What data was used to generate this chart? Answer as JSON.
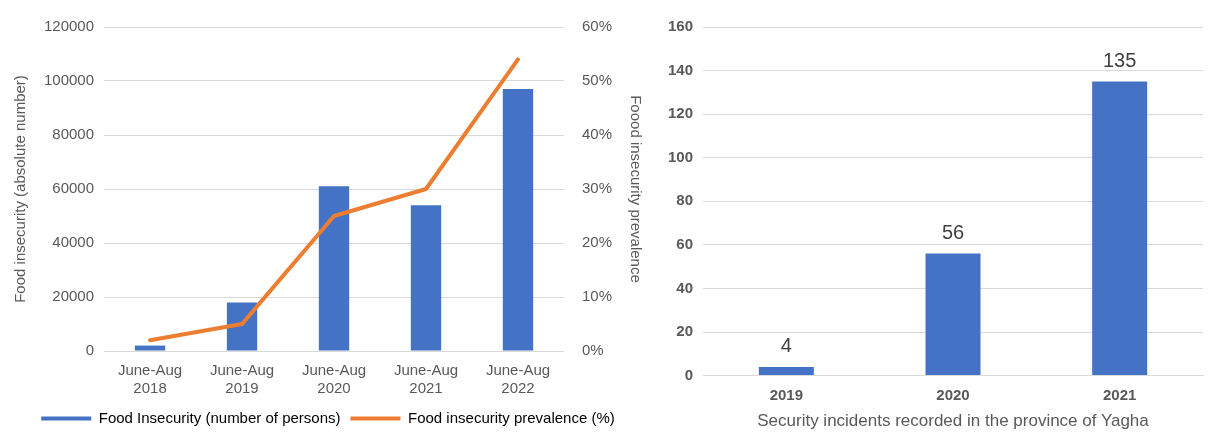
{
  "chart_data": [
    {
      "type": "bar",
      "categories": [
        "June-Aug 2018",
        "June-Aug 2019",
        "June-Aug 2020",
        "June-Aug 2021",
        "June-Aug 2022"
      ],
      "ylabel": "Food insecurity (absolute number)",
      "y2label": "Foood insecurity prevalence",
      "ylim": [
        0,
        120000
      ],
      "yticks": [
        0,
        20000,
        40000,
        60000,
        80000,
        100000,
        120000
      ],
      "y2lim": [
        0,
        60
      ],
      "y2ticks": [
        {
          "value": 0,
          "label": "0%"
        },
        {
          "value": 10,
          "label": "10%"
        },
        {
          "value": 20,
          "label": "20%"
        },
        {
          "value": 30,
          "label": "30%"
        },
        {
          "value": 40,
          "label": "40%"
        },
        {
          "value": 50,
          "label": "50%"
        },
        {
          "value": 60,
          "label": "60%"
        }
      ],
      "grid": "y",
      "legend": "bottom",
      "marker": "none",
      "series": [
        {
          "name": "Food Insecurity (number of persons)",
          "color": "#4472c4",
          "values": [
            2000,
            18000,
            61000,
            54000,
            97000
          ]
        },
        {
          "name": "Food insecurity prevalence (%)",
          "type": "line",
          "axis": "y2",
          "color": "#ed7d31",
          "values": [
            2,
            5,
            25,
            30,
            54
          ]
        }
      ]
    },
    {
      "type": "bar",
      "categories": [
        "2019",
        "2020",
        "2021"
      ],
      "xlabel": "Security incidents recorded in the province of Yagha",
      "ylim": [
        0,
        160
      ],
      "yticks": [
        0,
        20,
        40,
        60,
        80,
        100,
        120,
        140,
        160
      ],
      "grid": "y",
      "legend": false,
      "data_labels": true,
      "series": [
        {
          "color": "#4472c4",
          "values": [
            4,
            56,
            135
          ]
        }
      ]
    }
  ]
}
